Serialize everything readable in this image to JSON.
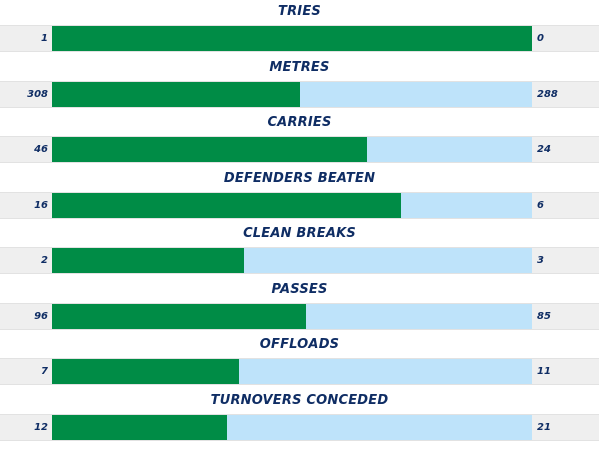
{
  "colors": {
    "home_bar": "#008c46",
    "away_bar": "#bee3fa",
    "title_text": "#0f2d64",
    "row_background": "#efefef"
  },
  "stats": [
    {
      "label": "TRIES",
      "home": "1",
      "away": "0",
      "home_share": 1.0
    },
    {
      "label": "METRES",
      "home": "308",
      "away": "288",
      "home_share": 0.517
    },
    {
      "label": "CARRIES",
      "home": "46",
      "away": "24",
      "home_share": 0.657
    },
    {
      "label": "DEFENDERS BEATEN",
      "home": "16",
      "away": "6",
      "home_share": 0.727
    },
    {
      "label": "CLEAN BREAKS",
      "home": "2",
      "away": "3",
      "home_share": 0.4
    },
    {
      "label": "PASSES",
      "home": "96",
      "away": "85",
      "home_share": 0.53
    },
    {
      "label": "OFFLOADS",
      "home": "7",
      "away": "11",
      "home_share": 0.389
    },
    {
      "label": "TURNOVERS CONCEDED",
      "home": "12",
      "away": "21",
      "home_share": 0.364
    }
  ]
}
